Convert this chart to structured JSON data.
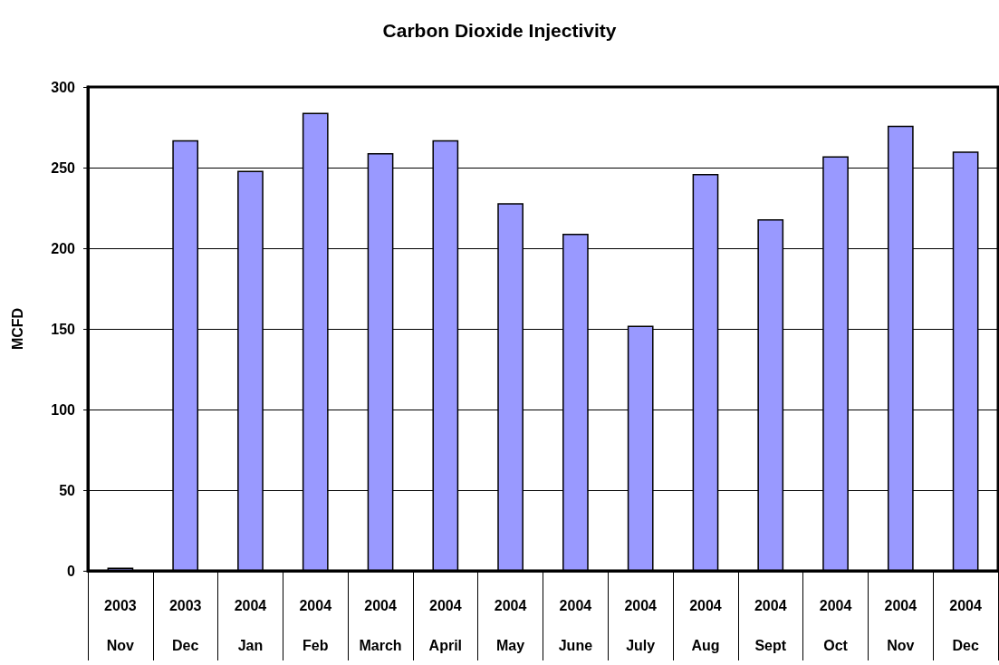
{
  "chart_data": {
    "type": "bar",
    "title": "Carbon Dioxide Injectivity",
    "ylabel": "MCFD",
    "categories": [
      "2003\nNov",
      "2003\nDec",
      "2004\nJan",
      "2004\nFeb",
      "2004\nMarch",
      "2004\nApril",
      "2004\nMay",
      "2004\nJune",
      "2004\nJuly",
      "2004\nAug",
      "2004\nSept",
      "2004\nOct",
      "2004\nNov",
      "2004\nDec"
    ],
    "values": [
      2,
      267,
      248,
      284,
      259,
      267,
      228,
      209,
      152,
      246,
      218,
      257,
      276,
      260
    ],
    "color": "#9999ff",
    "ylim": [
      0,
      300
    ],
    "yticks": [
      0,
      50,
      100,
      150,
      200,
      250,
      300
    ],
    "grid": "y"
  }
}
